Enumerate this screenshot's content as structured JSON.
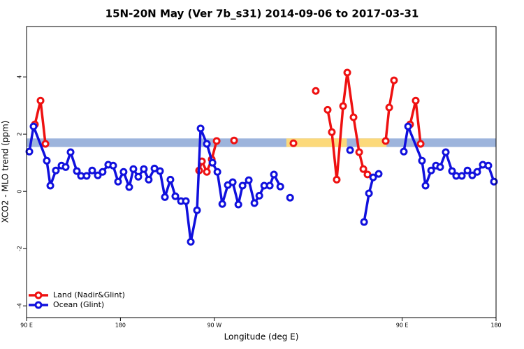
{
  "chart_data": {
    "type": "line",
    "title": "15N-20N May (Ver 7b_s31)   2014-09-06 to 2017-03-31",
    "xlabel": "Longitude (deg E)",
    "ylabel": "XCO2 - MLO trend (ppm)",
    "xlim": [
      90,
      540
    ],
    "ylim": [
      -4.41,
      5.76
    ],
    "xticks": [
      {
        "value": 90,
        "label": "90 E"
      },
      180,
      {
        "value": 270,
        "label": "90 W"
      },
      {
        "value": 450,
        "label": "90 E"
      },
      {
        "value": 540,
        "label": "180"
      }
    ],
    "yticks": [
      -4,
      -2,
      0,
      2,
      4
    ],
    "legend": "bottom-left",
    "band": {
      "range": [
        1.55,
        1.85
      ],
      "segments": [
        {
          "x": [
            90,
            540
          ],
          "color": "#9db4dc"
        },
        {
          "x": [
            339,
            397
          ],
          "color": "#fcd97a"
        },
        {
          "x": [
            409,
            435
          ],
          "color": "#fcd97a"
        }
      ]
    },
    "series": [
      {
        "name": "Land (Nadir&Glint)",
        "color": "#ee1111",
        "x": [
          98.0,
          103.4,
          108.1,
          null,
          255.4,
          258.1,
          262.8,
          267.5,
          272.2,
          null,
          288.9,
          null,
          345.8,
          null,
          367.2,
          null,
          378.6,
          382.6,
          387.3,
          393.4,
          397.4,
          403.4,
          408.8,
          412.8,
          416.8,
          null,
          434.2,
          437.6,
          442.2,
          null,
          457.6,
          463.0,
          467.7
        ],
        "values": [
          2.34,
          3.17,
          1.66,
          null,
          0.73,
          1.05,
          0.68,
          1.12,
          1.76,
          null,
          1.78,
          null,
          1.68,
          null,
          3.51,
          null,
          2.85,
          2.07,
          0.41,
          2.98,
          4.15,
          2.59,
          1.37,
          0.78,
          0.59,
          null,
          1.76,
          2.93,
          3.88,
          null,
          2.34,
          3.17,
          1.66
        ]
      },
      {
        "name": "Ocean (Glint)",
        "color": "#1010dd",
        "x": [
          92.7,
          96.7,
          109.4,
          112.8,
          118.1,
          123.5,
          127.5,
          132.2,
          138.2,
          142.2,
          147.6,
          152.9,
          158.3,
          162.9,
          168.3,
          173.0,
          177.7,
          183.0,
          188.4,
          192.4,
          197.1,
          202.4,
          207.1,
          212.6,
          217.9,
          222.6,
          227.9,
          232.6,
          238.0,
          242.7,
          247.4,
          253.4,
          256.8,
          262.8,
          268.2,
          272.9,
          277.6,
          282.9,
          287.6,
          293.0,
          297.0,
          303.0,
          308.4,
          313.1,
          317.8,
          323.1,
          327.1,
          333.2,
          null,
          342.6,
          null,
          400.1,
          null,
          413.5,
          418.2,
          422.2,
          427.5,
          null,
          451.6,
          455.7,
          469.0,
          472.4,
          477.8,
          482.4,
          486.4,
          491.8,
          497.8,
          501.8,
          507.2,
          512.6,
          517.2,
          521.9,
          527.3,
          532.6,
          538.0
        ],
        "values": [
          1.39,
          2.27,
          1.07,
          0.2,
          0.73,
          0.9,
          0.85,
          1.37,
          0.71,
          0.54,
          0.54,
          0.73,
          0.56,
          0.68,
          0.93,
          0.9,
          0.34,
          0.68,
          0.15,
          0.78,
          0.51,
          0.78,
          0.41,
          0.8,
          0.71,
          -0.2,
          0.41,
          -0.17,
          -0.34,
          -0.34,
          -1.76,
          -0.66,
          2.2,
          1.66,
          1.0,
          0.68,
          -0.44,
          0.22,
          0.32,
          -0.46,
          0.2,
          0.39,
          -0.41,
          -0.15,
          0.2,
          0.2,
          0.59,
          0.17,
          null,
          -0.22,
          null,
          1.44,
          null,
          -1.07,
          -0.07,
          0.49,
          0.61,
          null,
          1.39,
          2.27,
          1.07,
          0.2,
          0.73,
          0.9,
          0.85,
          1.37,
          0.71,
          0.54,
          0.54,
          0.73,
          0.56,
          0.68,
          0.93,
          0.9,
          0.34
        ]
      }
    ]
  }
}
